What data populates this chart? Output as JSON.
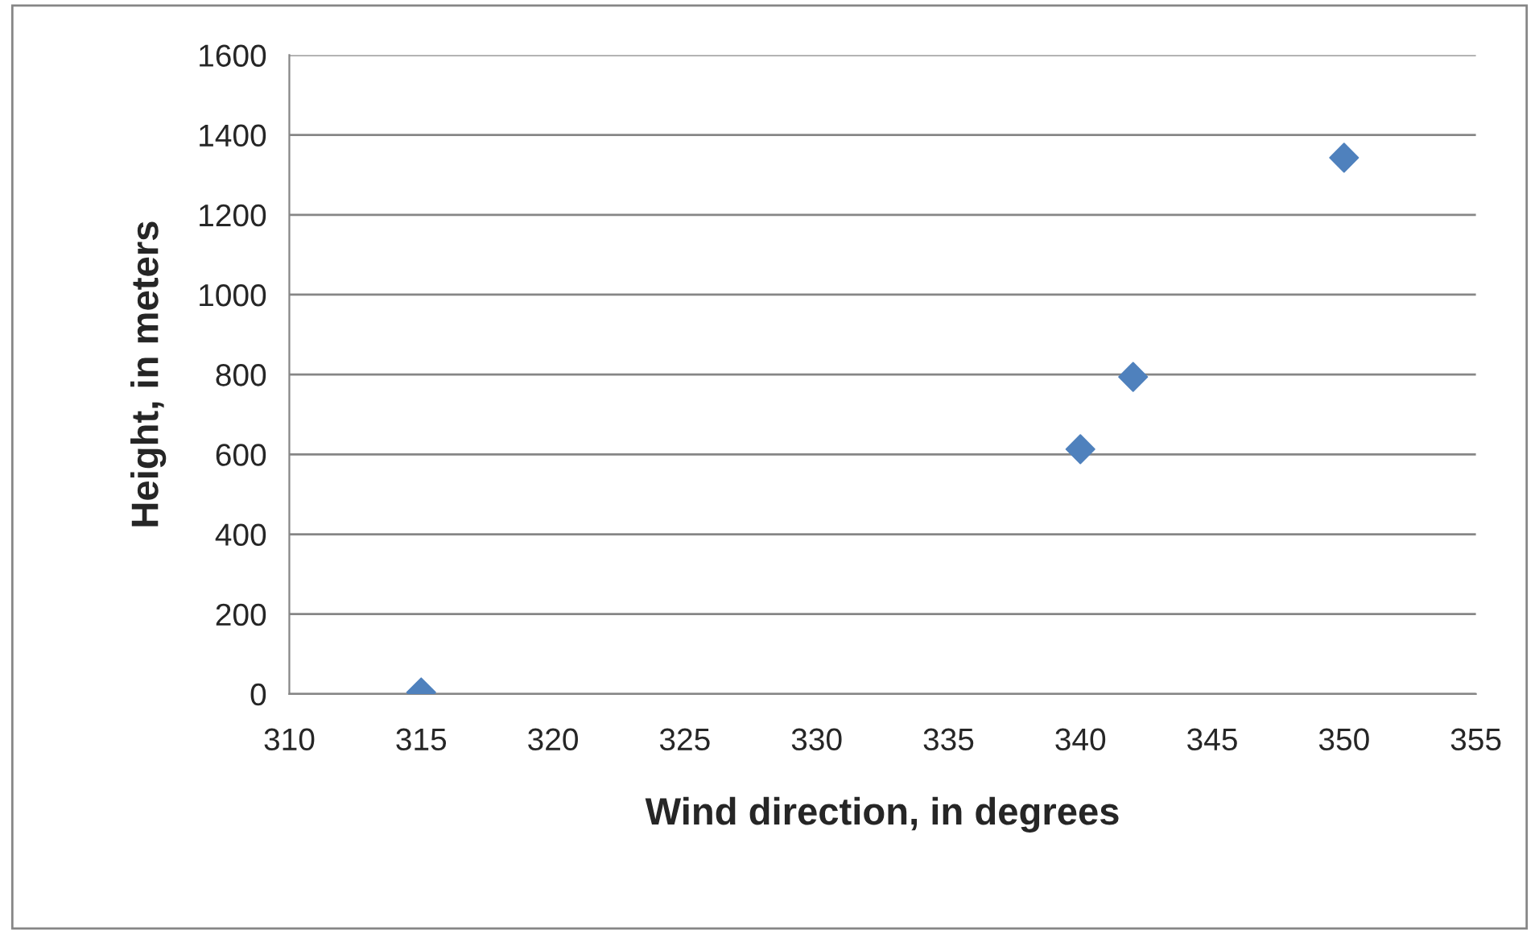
{
  "chart_data": {
    "type": "scatter",
    "xlabel": "Wind direction, in degrees",
    "ylabel": "Height, in meters",
    "x": [
      315,
      340,
      342,
      350
    ],
    "values": [
      4,
      613,
      794,
      1343
    ],
    "color": "#4f81bd",
    "marker": "diamond",
    "xlim": [
      310,
      355
    ],
    "xticks": [
      310,
      315,
      320,
      325,
      330,
      335,
      340,
      345,
      350,
      355
    ],
    "ylim": [
      0,
      1600
    ],
    "yticks": [
      0,
      200,
      400,
      600,
      800,
      1000,
      1200,
      1400,
      1600
    ],
    "grid": "y",
    "legend": false
  }
}
